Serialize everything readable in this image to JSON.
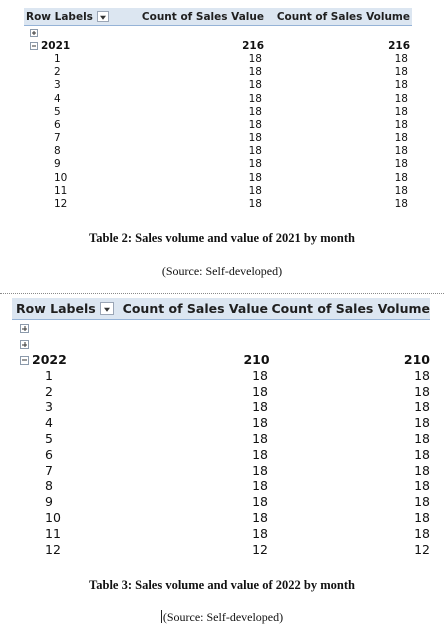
{
  "table1": {
    "headers": {
      "row_labels": "Row Labels",
      "sales_value": "Count of Sales Value",
      "sales_volume": "Count of Sales Volume"
    },
    "year": {
      "label": "2021",
      "sales_value": "216",
      "sales_volume": "216"
    },
    "months": [
      {
        "label": "1",
        "sales_value": "18",
        "sales_volume": "18"
      },
      {
        "label": "2",
        "sales_value": "18",
        "sales_volume": "18"
      },
      {
        "label": "3",
        "sales_value": "18",
        "sales_volume": "18"
      },
      {
        "label": "4",
        "sales_value": "18",
        "sales_volume": "18"
      },
      {
        "label": "5",
        "sales_value": "18",
        "sales_volume": "18"
      },
      {
        "label": "6",
        "sales_value": "18",
        "sales_volume": "18"
      },
      {
        "label": "7",
        "sales_value": "18",
        "sales_volume": "18"
      },
      {
        "label": "8",
        "sales_value": "18",
        "sales_volume": "18"
      },
      {
        "label": "9",
        "sales_value": "18",
        "sales_volume": "18"
      },
      {
        "label": "10",
        "sales_value": "18",
        "sales_volume": "18"
      },
      {
        "label": "11",
        "sales_value": "18",
        "sales_volume": "18"
      },
      {
        "label": "12",
        "sales_value": "18",
        "sales_volume": "18"
      }
    ],
    "caption": "Table 2: Sales volume and value of 2021 by month",
    "source": "(Source: Self-developed)"
  },
  "table2": {
    "headers": {
      "row_labels": "Row Labels",
      "sales_value": "Count of Sales Value",
      "sales_volume": "Count of Sales Volume"
    },
    "year": {
      "label": "2022",
      "sales_value": "210",
      "sales_volume": "210"
    },
    "months": [
      {
        "label": "1",
        "sales_value": "18",
        "sales_volume": "18"
      },
      {
        "label": "2",
        "sales_value": "18",
        "sales_volume": "18"
      },
      {
        "label": "3",
        "sales_value": "18",
        "sales_volume": "18"
      },
      {
        "label": "4",
        "sales_value": "18",
        "sales_volume": "18"
      },
      {
        "label": "5",
        "sales_value": "18",
        "sales_volume": "18"
      },
      {
        "label": "6",
        "sales_value": "18",
        "sales_volume": "18"
      },
      {
        "label": "7",
        "sales_value": "18",
        "sales_volume": "18"
      },
      {
        "label": "8",
        "sales_value": "18",
        "sales_volume": "18"
      },
      {
        "label": "9",
        "sales_value": "18",
        "sales_volume": "18"
      },
      {
        "label": "10",
        "sales_value": "18",
        "sales_volume": "18"
      },
      {
        "label": "11",
        "sales_value": "18",
        "sales_volume": "18"
      },
      {
        "label": "12",
        "sales_value": "12",
        "sales_volume": "12"
      }
    ],
    "caption": "Table 3: Sales volume and value of 2022 by month",
    "source": "(Source: Self-developed)"
  },
  "icons": {
    "filter": "filter-dropdown-icon",
    "expand": "expand-plus-icon",
    "collapse": "collapse-minus-icon"
  }
}
